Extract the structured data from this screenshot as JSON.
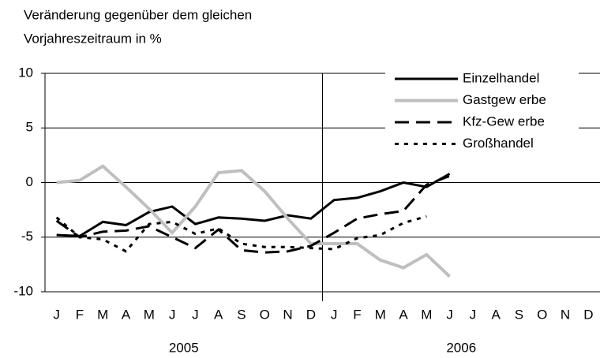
{
  "chart_data": {
    "type": "line",
    "ylabel": [
      "Veränderung gegenüber dem gleichen",
      "Vorjahreszeitraum in %"
    ],
    "categories": [
      "J",
      "F",
      "M",
      "A",
      "M",
      "J",
      "J",
      "A",
      "S",
      "O",
      "N",
      "D",
      "J",
      "F",
      "M",
      "A",
      "M",
      "J",
      "J",
      "A",
      "S",
      "O",
      "N",
      "D"
    ],
    "years": [
      "2005",
      "2006"
    ],
    "ylim": [
      -10,
      10
    ],
    "yticks": [
      -10,
      -5,
      0,
      5,
      10
    ],
    "grid": true,
    "legend": "upper right",
    "series": [
      {
        "name": "Einzelhandel",
        "color": "#000000",
        "dash": "solid",
        "values": [
          -4.8,
          -4.9,
          -3.6,
          -3.9,
          -2.7,
          -2.2,
          -3.8,
          -3.2,
          -3.3,
          -3.5,
          -3.0,
          -3.3,
          -1.6,
          -1.4,
          -0.8,
          0.0,
          -0.4,
          0.8,
          null,
          null,
          null,
          null,
          null,
          null
        ]
      },
      {
        "name": "Gastgew erbe",
        "color": "#bfbfbf",
        "dash": "solid",
        "values": [
          0.0,
          0.2,
          1.5,
          -0.4,
          -2.4,
          -4.6,
          -2.2,
          0.9,
          1.1,
          -0.8,
          -3.3,
          -5.6,
          -5.6,
          -5.6,
          -7.1,
          -7.8,
          -6.6,
          -8.6,
          null,
          null,
          null,
          null,
          null,
          null
        ]
      },
      {
        "name": "Kfz-Gew erbe",
        "color": "#000000",
        "dash": "dashed",
        "values": [
          -3.5,
          -5.0,
          -4.5,
          -4.4,
          -4.0,
          -5.0,
          -6.0,
          -4.3,
          -6.2,
          -6.4,
          -6.3,
          -5.8,
          -4.6,
          -3.3,
          -2.9,
          -2.6,
          -0.2,
          0.6,
          null,
          null,
          null,
          null,
          null,
          null
        ]
      },
      {
        "name": "Großhandel",
        "color": "#000000",
        "dash": "dotted",
        "values": [
          -3.2,
          -5.0,
          -5.2,
          -6.3,
          -3.8,
          -3.6,
          -4.7,
          -4.2,
          -5.6,
          -5.9,
          -5.9,
          -6.0,
          -6.1,
          -5.1,
          -4.8,
          -3.7,
          -3.1,
          null,
          null,
          null,
          null,
          null,
          null,
          null
        ]
      }
    ]
  }
}
